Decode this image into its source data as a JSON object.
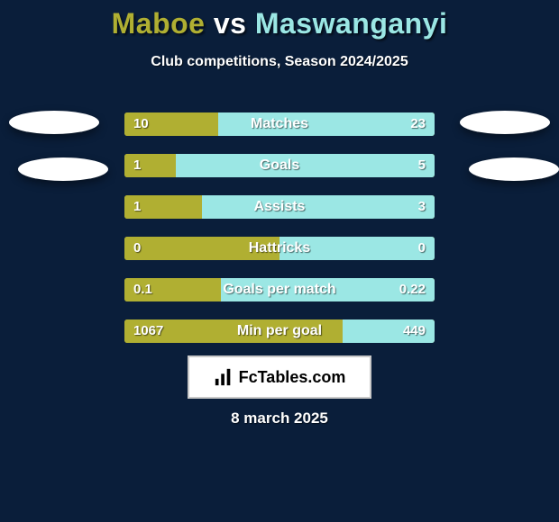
{
  "background_color": "#0a1e3a",
  "title": {
    "player1": "Maboe",
    "vs": "vs",
    "player2": "Maswanganyi",
    "player1_color": "#b0af32",
    "vs_color": "#ffffff",
    "player2_color": "#9be7e4"
  },
  "subtitle": "Club competitions, Season 2024/2025",
  "player1_bar_color": "#b0af32",
  "player2_bar_color": "#9be7e4",
  "bar_bg_color": "#b0af32",
  "stats": [
    {
      "label": "Matches",
      "v1": "10",
      "v2": "23",
      "p1_pct": 30.3,
      "p2_pct": 69.7
    },
    {
      "label": "Goals",
      "v1": "1",
      "v2": "5",
      "p1_pct": 16.7,
      "p2_pct": 83.3
    },
    {
      "label": "Assists",
      "v1": "1",
      "v2": "3",
      "p1_pct": 25.0,
      "p2_pct": 75.0
    },
    {
      "label": "Hattricks",
      "v1": "0",
      "v2": "0",
      "p1_pct": 50.0,
      "p2_pct": 50.0
    },
    {
      "label": "Goals per match",
      "v1": "0.1",
      "v2": "0.22",
      "p1_pct": 31.2,
      "p2_pct": 68.8
    },
    {
      "label": "Min per goal",
      "v1": "1067",
      "v2": "449",
      "p1_pct": 70.4,
      "p2_pct": 29.6
    }
  ],
  "brand": {
    "text": "FcTables.com",
    "bg": "#ffffff",
    "fg": "#000000"
  },
  "date": {
    "text": "8 march 2025",
    "color": "#ffffff"
  },
  "badge_colors": {
    "left1": "#ffffff",
    "left2": "#ffffff",
    "right1": "#ffffff",
    "right2": "#ffffff"
  }
}
